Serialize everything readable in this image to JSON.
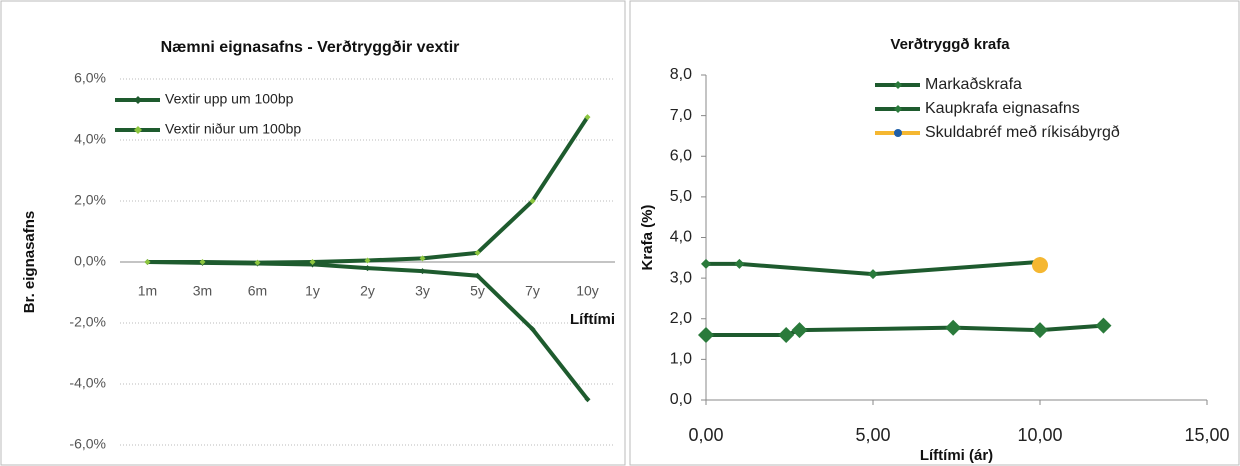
{
  "chart_data": [
    {
      "type": "line",
      "title": "Næmni eignasafns - Verðtryggðir vextir",
      "ylabel": "Br. eignasafns",
      "xlabel": "Líftími",
      "categories": [
        "1m",
        "3m",
        "6m",
        "1y",
        "2y",
        "3y",
        "5y",
        "7y",
        "10y"
      ],
      "series": [
        {
          "name": "Vextir upp um 100bp",
          "color": "#1e5b2e",
          "marker_color": "#1e5b2e",
          "values": [
            0,
            -0.03,
            -0.05,
            -0.08,
            -0.2,
            -0.3,
            -0.45,
            -2.2,
            -4.5
          ]
        },
        {
          "name": "Vextir niður um 100bp",
          "color": "#1e5b2e",
          "marker_color": "#8dc63f",
          "values": [
            0,
            0,
            -0.02,
            0,
            0.05,
            0.12,
            0.3,
            2.0,
            4.75
          ]
        }
      ],
      "ylim": [
        -6,
        6
      ],
      "yticks": [
        {
          "value": -6,
          "label": "-6,0%"
        },
        {
          "value": -4,
          "label": "-4,0%"
        },
        {
          "value": -2,
          "label": "-2,0%"
        },
        {
          "value": 0,
          "label": "0,0%"
        },
        {
          "value": 2,
          "label": "2,0%"
        },
        {
          "value": 4,
          "label": "4,0%"
        },
        {
          "value": 6,
          "label": "6,0%"
        }
      ],
      "grid": true
    },
    {
      "type": "scatter",
      "title": "Verðtryggð krafa",
      "ylabel": "Krafa (%)",
      "xlabel": "Líftími (ár)",
      "series": [
        {
          "name": "Markaðskrafa",
          "color": "#1e5b2e",
          "marker_color": "#2a7a3b",
          "marker_size": 5,
          "x": [
            0,
            1,
            5,
            10
          ],
          "values": [
            3.35,
            3.35,
            3.1,
            3.4
          ]
        },
        {
          "name": "Kaupkrafa eignasafns",
          "color": "#1e5b2e",
          "marker_color": "#2a7a3b",
          "marker_size": 8,
          "x": [
            0,
            2.4,
            2.8,
            7.4,
            10,
            11.9
          ],
          "values": [
            1.6,
            1.6,
            1.72,
            1.78,
            1.72,
            1.83
          ]
        },
        {
          "name": "Skuldabréf með ríkisábyrgð",
          "color": "#f5b731",
          "marker_color": "#f5b731",
          "marker_size": 8,
          "x": [
            10
          ],
          "values": [
            3.32
          ]
        }
      ],
      "xlim": [
        0,
        15
      ],
      "xticks": [
        {
          "value": 0,
          "label": "0,00"
        },
        {
          "value": 5,
          "label": "5,00"
        },
        {
          "value": 10,
          "label": "10,00"
        },
        {
          "value": 15,
          "label": "15,00"
        }
      ],
      "ylim": [
        0,
        8
      ],
      "yticks": [
        {
          "value": 0,
          "label": "0,0"
        },
        {
          "value": 1,
          "label": "1,0"
        },
        {
          "value": 2,
          "label": "2,0"
        },
        {
          "value": 3,
          "label": "3,0"
        },
        {
          "value": 4,
          "label": "4,0"
        },
        {
          "value": 5,
          "label": "5,0"
        },
        {
          "value": 6,
          "label": "6,0"
        },
        {
          "value": 7,
          "label": "7,0"
        },
        {
          "value": 8,
          "label": "8,0"
        }
      ],
      "grid": false
    }
  ]
}
